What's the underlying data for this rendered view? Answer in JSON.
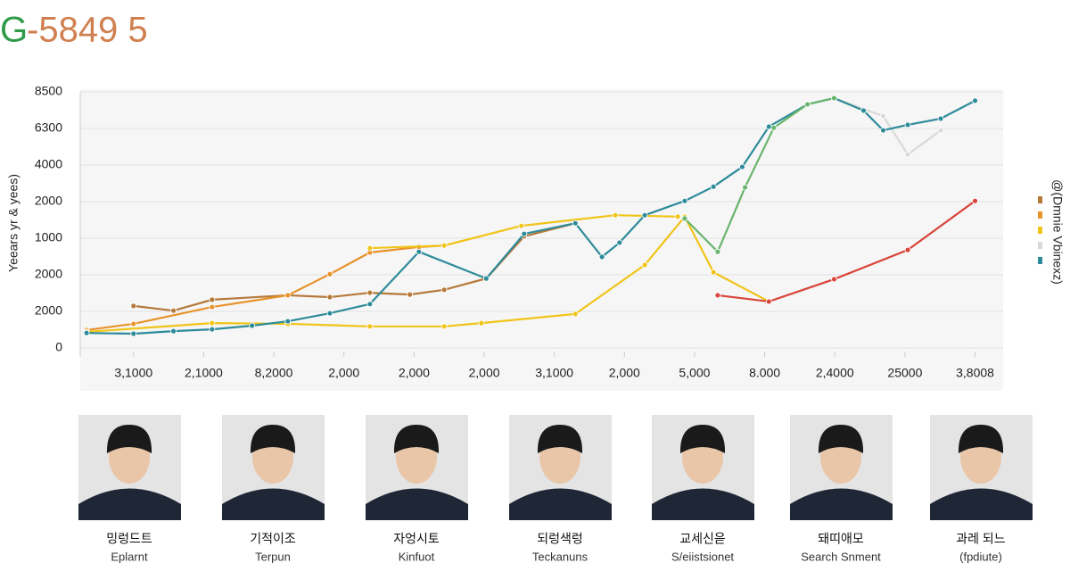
{
  "header": {
    "logo": "G",
    "title": "-5849 5"
  },
  "chart_data": {
    "type": "line",
    "ylabel": "Yeears yr & yees)",
    "legend_title": "@(Dmnie Vbinexz)",
    "legend_colors": [
      "#b5793a",
      "#e8922a",
      "#f0c419",
      "#d9d9d9",
      "#2e8b9a"
    ],
    "xlim": [
      -0.76,
      12.4
    ],
    "xticks": [
      {
        "value": 0,
        "label": "3,1000"
      },
      {
        "value": 1,
        "label": "2,1000"
      },
      {
        "value": 2,
        "label": "8,2000"
      },
      {
        "value": 3,
        "label": "2,000"
      },
      {
        "value": 4,
        "label": "2,000"
      },
      {
        "value": 5,
        "label": "2,000"
      },
      {
        "value": 6,
        "label": "3,1000"
      },
      {
        "value": 7,
        "label": "2,000"
      },
      {
        "value": 8,
        "label": "5,000"
      },
      {
        "value": 9,
        "label": "8.000"
      },
      {
        "value": 10,
        "label": "2,4000"
      },
      {
        "value": 11,
        "label": "25000"
      },
      {
        "value": 12,
        "label": "3,8008"
      }
    ],
    "ylim": [
      0,
      7
    ],
    "yticks": [
      {
        "value": 0,
        "label": "0"
      },
      {
        "value": 1,
        "label": "2000"
      },
      {
        "value": 2,
        "label": "2000"
      },
      {
        "value": 3,
        "label": "1000"
      },
      {
        "value": 4,
        "label": "2000"
      },
      {
        "value": 5,
        "label": "4000"
      },
      {
        "value": 6,
        "label": "6300"
      },
      {
        "value": 7,
        "label": "8500"
      }
    ],
    "grid": true,
    "series": [
      {
        "color": "#d9d9d9",
        "x": [
          9.99,
          10.69,
          11.04,
          11.51
        ],
        "values": [
          6.83,
          6.34,
          5.29,
          5.95
        ]
      },
      {
        "color": "#b5793a",
        "x": [
          0,
          0.57,
          1.12,
          2.2,
          2.8,
          3.37,
          3.94,
          4.43,
          5.03,
          5.57,
          6.3
        ],
        "values": [
          1.15,
          1.02,
          1.32,
          1.44,
          1.39,
          1.51,
          1.46,
          1.59,
          1.9,
          3.05,
          3.41
        ]
      },
      {
        "color": "#e8922a",
        "x": [
          -0.67,
          0,
          1.12,
          2.2,
          2.8,
          3.37,
          4.07,
          4.43
        ],
        "values": [
          0.49,
          0.66,
          1.12,
          1.44,
          2.02,
          2.61,
          2.76,
          2.8
        ]
      },
      {
        "color": "#f0c419",
        "x": [
          -0.67,
          1.12,
          2.2,
          3.37,
          4.43,
          4.96,
          6.3,
          7.29,
          7.86,
          8.27,
          9.06
        ],
        "values": [
          0.44,
          0.68,
          0.66,
          0.59,
          0.59,
          0.68,
          0.93,
          2.27,
          3.59,
          2.07,
          1.27
        ]
      },
      {
        "color": "#f0c419",
        "x": [
          3.37,
          4.43,
          5.53,
          6.87,
          7.76
        ],
        "values": [
          2.73,
          2.8,
          3.34,
          3.63,
          3.59
        ]
      },
      {
        "color": "#2e8b9a",
        "x": [
          -0.67,
          0,
          0.57,
          1.12,
          1.69,
          2.2,
          2.8,
          3.37,
          4.07,
          5.03,
          5.57,
          6.3,
          6.68,
          6.93,
          7.29,
          7.86,
          8.27,
          8.68,
          9.06,
          9.61,
          9.99,
          10.41,
          10.69,
          11.04,
          11.51,
          12.0
        ],
        "values": [
          0.41,
          0.39,
          0.46,
          0.51,
          0.61,
          0.73,
          0.95,
          1.2,
          2.63,
          1.9,
          3.12,
          3.41,
          2.49,
          2.88,
          3.63,
          4.02,
          4.41,
          4.95,
          6.05,
          6.66,
          6.83,
          6.49,
          5.95,
          6.1,
          6.27,
          6.76
        ]
      },
      {
        "color": "#6ab56d",
        "x": [
          7.86,
          8.33,
          8.72,
          9.13,
          9.61,
          9.99
        ],
        "values": [
          3.54,
          2.63,
          4.39,
          6.02,
          6.66,
          6.83
        ]
      },
      {
        "color": "#d9453b",
        "x": [
          8.33,
          9.06,
          9.99,
          11.04,
          12.0
        ],
        "values": [
          1.44,
          1.27,
          1.88,
          2.68,
          4.02
        ]
      }
    ]
  },
  "people": [
    {
      "name": "밍렁드트",
      "role": "Eplarnt"
    },
    {
      "name": "기적이조",
      "role": "Terpun"
    },
    {
      "name": "자엉시토",
      "role": "Kinfuot"
    },
    {
      "name": "되렁색렁",
      "role": "Teckanuns"
    },
    {
      "name": "교세신읃",
      "role": "S/eiistsionet"
    },
    {
      "name": "돼띠애모",
      "role": "Search Snment"
    },
    {
      "name": "과레 되느",
      "role": "(fpdiute)"
    }
  ]
}
